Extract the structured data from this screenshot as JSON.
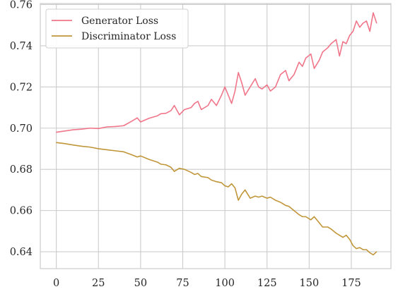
{
  "chart_data": {
    "type": "line",
    "title": "",
    "xlabel": "",
    "ylabel": "",
    "xlim": [
      -9.5,
      198.5
    ],
    "ylim": [
      0.6318,
      0.7605
    ],
    "grid": true,
    "legend_position": "top-left",
    "x_ticks": [
      0,
      25,
      50,
      75,
      100,
      125,
      150,
      175
    ],
    "y_ticks": [
      0.64,
      0.66,
      0.68,
      0.7,
      0.72,
      0.74,
      0.76
    ],
    "y_tick_labels": [
      "0.64",
      "0.66",
      "0.68",
      "0.70",
      "0.72",
      "0.74",
      "0.76"
    ],
    "series": [
      {
        "name": "Generator Loss",
        "color": "#f0768a",
        "points": [
          [
            0,
            0.698
          ],
          [
            5,
            0.6986
          ],
          [
            10,
            0.6992
          ],
          [
            15,
            0.6995
          ],
          [
            20,
            0.7
          ],
          [
            25,
            0.6998
          ],
          [
            30,
            0.7006
          ],
          [
            35,
            0.7008
          ],
          [
            40,
            0.7012
          ],
          [
            45,
            0.7035
          ],
          [
            48,
            0.705
          ],
          [
            50,
            0.703
          ],
          [
            55,
            0.7048
          ],
          [
            60,
            0.706
          ],
          [
            62,
            0.707
          ],
          [
            65,
            0.7072
          ],
          [
            68,
            0.7085
          ],
          [
            70,
            0.711
          ],
          [
            73,
            0.7065
          ],
          [
            76,
            0.709
          ],
          [
            80,
            0.71
          ],
          [
            82,
            0.712
          ],
          [
            84,
            0.713
          ],
          [
            86,
            0.709
          ],
          [
            90,
            0.711
          ],
          [
            92,
            0.714
          ],
          [
            95,
            0.711
          ],
          [
            98,
            0.716
          ],
          [
            100,
            0.72
          ],
          [
            102,
            0.716
          ],
          [
            104,
            0.712
          ],
          [
            106,
            0.718
          ],
          [
            108,
            0.727
          ],
          [
            110,
            0.722
          ],
          [
            112,
            0.716
          ],
          [
            115,
            0.72
          ],
          [
            118,
            0.724
          ],
          [
            120,
            0.72
          ],
          [
            122,
            0.719
          ],
          [
            125,
            0.721
          ],
          [
            127,
            0.718
          ],
          [
            130,
            0.72
          ],
          [
            133,
            0.726
          ],
          [
            136,
            0.728
          ],
          [
            138,
            0.723
          ],
          [
            141,
            0.726
          ],
          [
            144,
            0.732
          ],
          [
            146,
            0.73
          ],
          [
            148,
            0.734
          ],
          [
            151,
            0.736
          ],
          [
            153,
            0.729
          ],
          [
            156,
            0.733
          ],
          [
            158,
            0.737
          ],
          [
            161,
            0.739
          ],
          [
            163,
            0.741
          ],
          [
            166,
            0.743
          ],
          [
            168,
            0.735
          ],
          [
            170,
            0.742
          ],
          [
            172,
            0.741
          ],
          [
            174,
            0.745
          ],
          [
            176,
            0.747
          ],
          [
            178,
            0.752
          ],
          [
            180,
            0.749
          ],
          [
            182,
            0.751
          ],
          [
            184,
            0.752
          ],
          [
            186,
            0.747
          ],
          [
            188,
            0.756
          ],
          [
            190,
            0.751
          ]
        ]
      },
      {
        "name": "Discriminator Loss",
        "color": "#c09639",
        "points": [
          [
            0,
            0.693
          ],
          [
            5,
            0.6925
          ],
          [
            10,
            0.6918
          ],
          [
            15,
            0.6912
          ],
          [
            20,
            0.6908
          ],
          [
            25,
            0.69
          ],
          [
            30,
            0.6895
          ],
          [
            35,
            0.689
          ],
          [
            40,
            0.6885
          ],
          [
            45,
            0.687
          ],
          [
            48,
            0.686
          ],
          [
            50,
            0.6865
          ],
          [
            55,
            0.6848
          ],
          [
            60,
            0.6835
          ],
          [
            62,
            0.6825
          ],
          [
            65,
            0.6822
          ],
          [
            68,
            0.681
          ],
          [
            70,
            0.679
          ],
          [
            73,
            0.6805
          ],
          [
            76,
            0.68
          ],
          [
            80,
            0.6785
          ],
          [
            82,
            0.6775
          ],
          [
            84,
            0.678
          ],
          [
            86,
            0.6765
          ],
          [
            90,
            0.676
          ],
          [
            92,
            0.6748
          ],
          [
            95,
            0.674
          ],
          [
            98,
            0.6735
          ],
          [
            100,
            0.672
          ],
          [
            102,
            0.6715
          ],
          [
            104,
            0.673
          ],
          [
            106,
            0.671
          ],
          [
            108,
            0.665
          ],
          [
            110,
            0.668
          ],
          [
            112,
            0.67
          ],
          [
            115,
            0.666
          ],
          [
            118,
            0.667
          ],
          [
            120,
            0.6665
          ],
          [
            122,
            0.667
          ],
          [
            125,
            0.666
          ],
          [
            127,
            0.6665
          ],
          [
            130,
            0.665
          ],
          [
            133,
            0.664
          ],
          [
            136,
            0.6625
          ],
          [
            138,
            0.662
          ],
          [
            141,
            0.66
          ],
          [
            144,
            0.658
          ],
          [
            146,
            0.657
          ],
          [
            148,
            0.657
          ],
          [
            151,
            0.6555
          ],
          [
            153,
            0.657
          ],
          [
            156,
            0.654
          ],
          [
            158,
            0.652
          ],
          [
            161,
            0.652
          ],
          [
            163,
            0.651
          ],
          [
            166,
            0.649
          ],
          [
            168,
            0.648
          ],
          [
            170,
            0.647
          ],
          [
            172,
            0.648
          ],
          [
            174,
            0.646
          ],
          [
            176,
            0.643
          ],
          [
            178,
            0.6415
          ],
          [
            180,
            0.642
          ],
          [
            182,
            0.641
          ],
          [
            184,
            0.641
          ],
          [
            186,
            0.6395
          ],
          [
            188,
            0.6385
          ],
          [
            190,
            0.64
          ]
        ]
      }
    ]
  }
}
